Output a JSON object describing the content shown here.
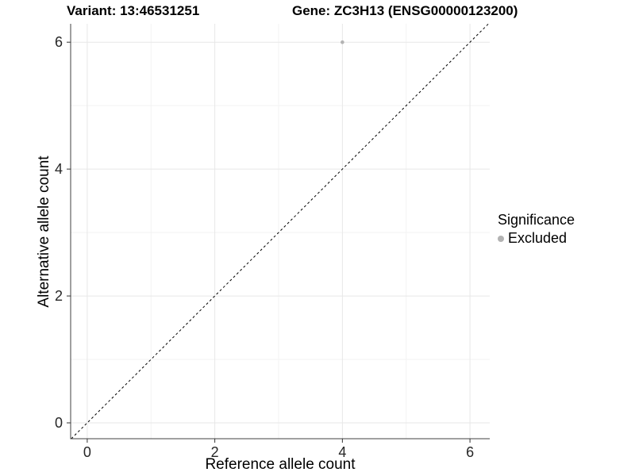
{
  "titles": {
    "variant": "Variant: 13:46531251",
    "gene": "Gene: ZC3H13 (ENSG00000123200)"
  },
  "legend": {
    "title": "Significance",
    "position": "right",
    "items": [
      {
        "label": "Excluded",
        "color": "#b3b3b3"
      }
    ]
  },
  "chart_data": {
    "type": "scatter",
    "title": "",
    "xlabel": "Reference allele count",
    "ylabel": "Alternative allele count",
    "xlim": [
      -0.26,
      6.31
    ],
    "ylim": [
      -0.25,
      6.29
    ],
    "x_ticks": [
      0,
      2,
      4,
      6
    ],
    "y_ticks": [
      0,
      2,
      4,
      6
    ],
    "x_minor_ticks": [
      1,
      3,
      5
    ],
    "y_minor_ticks": [
      1,
      3,
      5
    ],
    "grid": "major+minor",
    "legend_position": "right",
    "series": [
      {
        "name": "Excluded",
        "color": "#b3b3b3",
        "point_radius": 2.3,
        "points": [
          {
            "x": 4,
            "y": 6
          }
        ]
      }
    ],
    "reference_line": {
      "style": "dashed",
      "slope": 1,
      "intercept": 0,
      "color": "#000000"
    }
  },
  "colors": {
    "background": "#ffffff",
    "grid_major": "#e7e7e7",
    "grid_minor": "#f3f3f3",
    "axis_line": "#404040",
    "tick_mark": "#333333",
    "tick_text": "#262626"
  }
}
